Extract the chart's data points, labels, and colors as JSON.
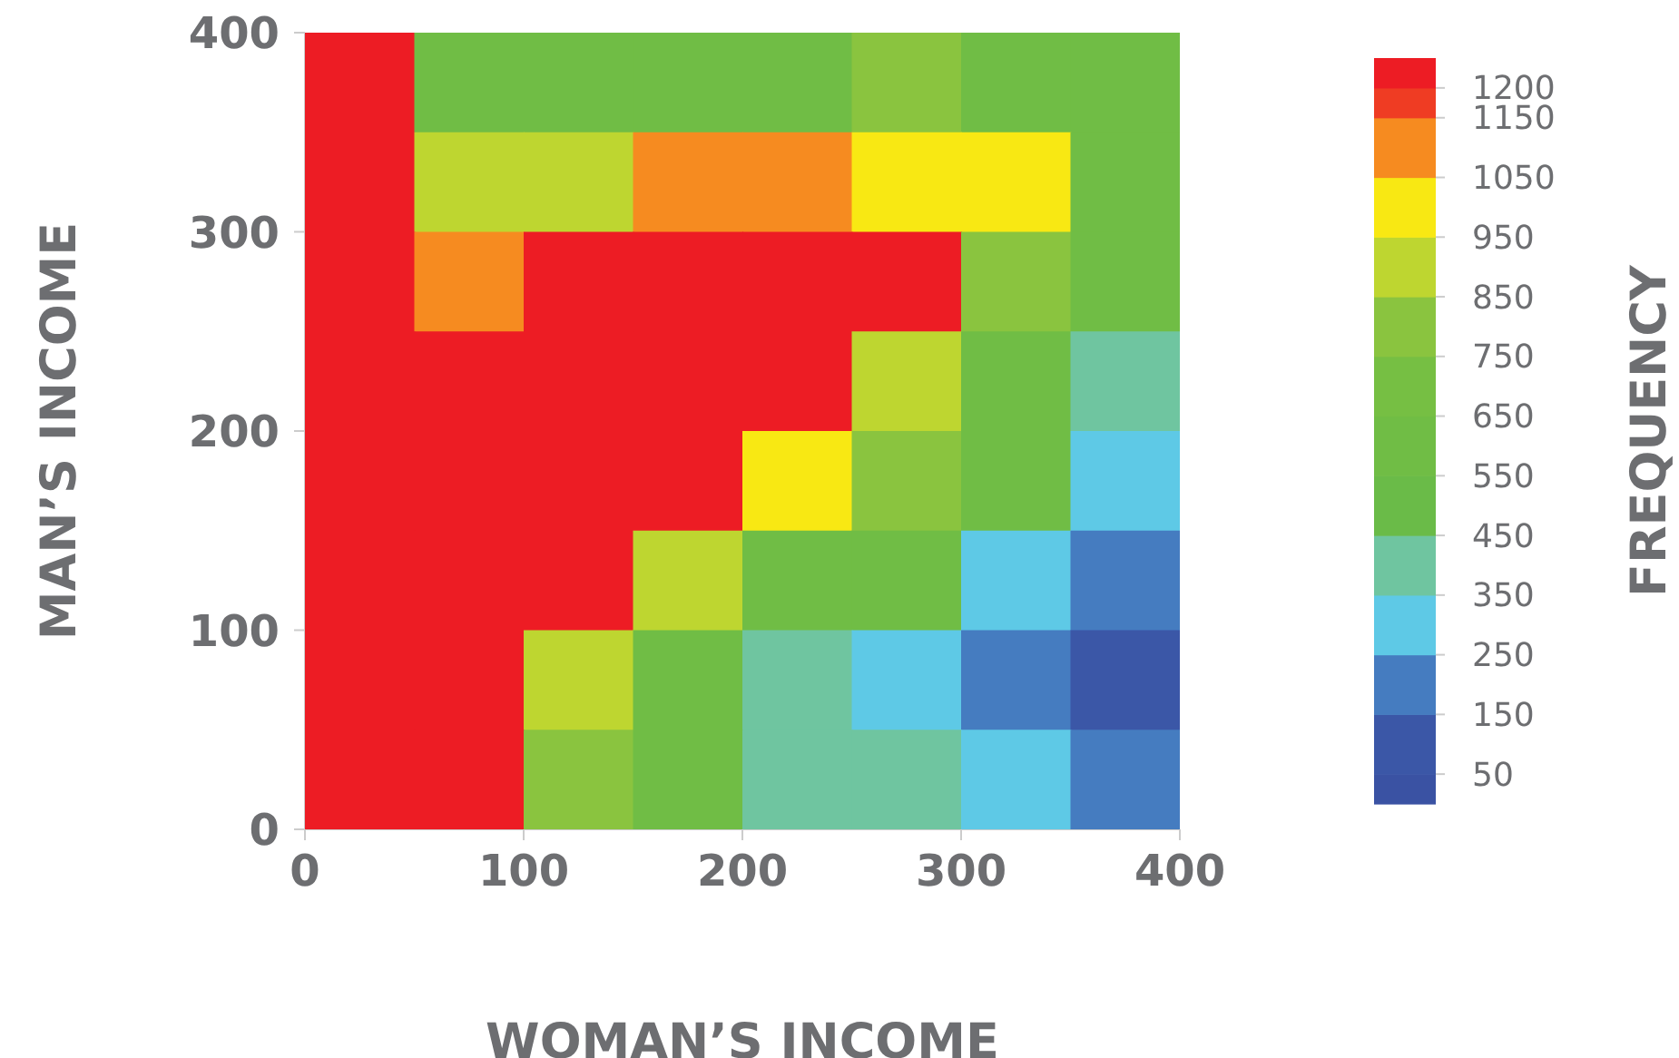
{
  "chart_data": {
    "type": "heatmap",
    "xlabel": "WOMAN’S INCOME",
    "ylabel": "MAN’S INCOME",
    "clabel": "FREQUENCY",
    "xlim": [
      0,
      400
    ],
    "xticks": [
      0,
      100,
      200,
      300,
      400
    ],
    "ylim": [
      0,
      400
    ],
    "yticks": [
      0,
      100,
      200,
      300,
      400
    ],
    "clim": [
      0,
      1250
    ],
    "cticks": [
      50,
      150,
      250,
      350,
      450,
      550,
      650,
      750,
      850,
      950,
      1050,
      1150,
      1200
    ],
    "colors": [
      "#3a52a3",
      "#3b57a7",
      "#457cc0",
      "#5ec9e6",
      "#6fc5a0",
      "#6abb48",
      "#70bd45",
      "#76bf43",
      "#8ac43f",
      "#bed630",
      "#f8e813",
      "#f68b20",
      "#ef3c23",
      "#ed1c24"
    ],
    "cells": [
      [
        1225,
        600,
        600,
        600,
        600,
        800,
        600,
        600
      ],
      [
        1225,
        900,
        900,
        1100,
        1100,
        1000,
        1000,
        600
      ],
      [
        1225,
        1100,
        1225,
        1225,
        1225,
        1225,
        800,
        600
      ],
      [
        1225,
        1225,
        1225,
        1225,
        1225,
        900,
        600,
        400
      ],
      [
        1225,
        1225,
        1225,
        1225,
        1000,
        800,
        600,
        300
      ],
      [
        1225,
        1225,
        1225,
        900,
        600,
        600,
        300,
        200
      ],
      [
        1225,
        1225,
        900,
        600,
        400,
        300,
        200,
        100
      ],
      [
        1225,
        1225,
        800,
        600,
        400,
        400,
        300,
        200
      ]
    ]
  }
}
